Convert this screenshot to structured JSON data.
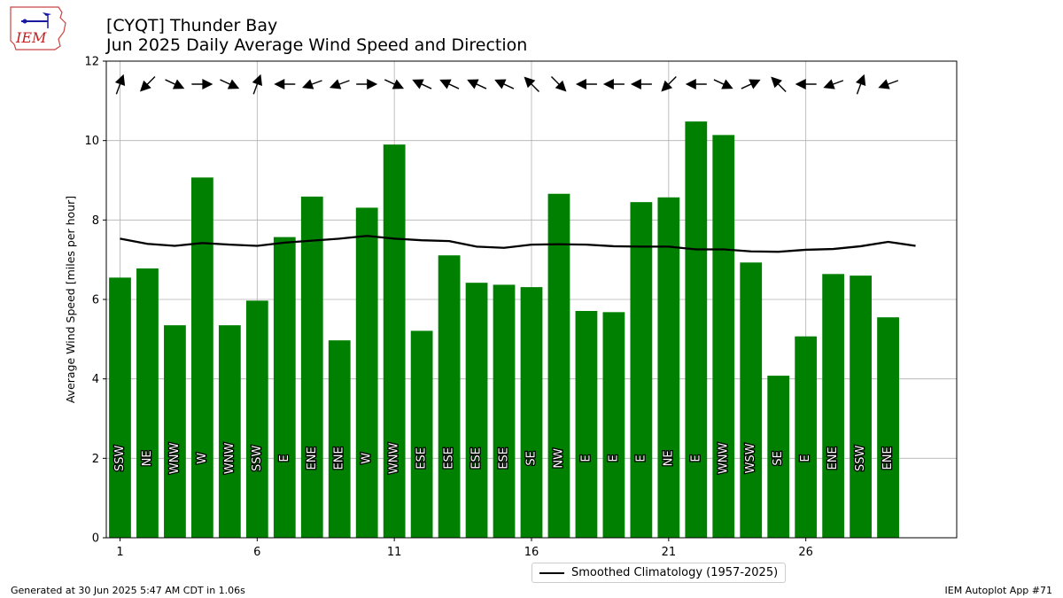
{
  "logo": {
    "text": "IEM"
  },
  "header": {
    "title_line1": "[CYQT] Thunder Bay",
    "title_line2": "Jun 2025 Daily Average Wind Speed and Direction"
  },
  "footer": {
    "left": "Generated at 30 Jun 2025 5:47 AM CDT in 1.06s",
    "right": "IEM Autoplot App #71"
  },
  "colors": {
    "bar": "#008000",
    "climatology": "#000000",
    "grid": "#b0b0b0"
  },
  "chart_data": {
    "type": "bar",
    "ylabel": "Average Wind Speed [miles per hour]",
    "ylim": [
      0,
      12
    ],
    "yticks": [
      0,
      2,
      4,
      6,
      8,
      10,
      12
    ],
    "xticks": [
      1,
      6,
      11,
      16,
      21,
      26
    ],
    "xlim": [
      0.5,
      31.5
    ],
    "grid": true,
    "legend": "lower center, below axes",
    "days": [
      1,
      2,
      3,
      4,
      5,
      6,
      7,
      8,
      9,
      10,
      11,
      12,
      13,
      14,
      15,
      16,
      17,
      18,
      19,
      20,
      21,
      22,
      23,
      24,
      25,
      26,
      27,
      28,
      29
    ],
    "speed": [
      6.55,
      6.78,
      5.35,
      9.07,
      5.35,
      5.97,
      7.57,
      8.59,
      4.97,
      8.31,
      9.9,
      5.21,
      7.11,
      6.42,
      6.37,
      6.31,
      8.66,
      5.71,
      5.68,
      8.45,
      8.57,
      10.48,
      10.14,
      6.93,
      4.08,
      5.07,
      6.64,
      6.6,
      5.55
    ],
    "direction_labels": [
      "SSW",
      "NE",
      "WNW",
      "W",
      "WNW",
      "SSW",
      "E",
      "ENE",
      "ENE",
      "W",
      "WNW",
      "ESE",
      "ESE",
      "ESE",
      "ESE",
      "SE",
      "NW",
      "E",
      "E",
      "E",
      "NE",
      "E",
      "WNW",
      "WSW",
      "SE",
      "E",
      "ENE",
      "SSW",
      "ENE"
    ],
    "direction_deg": [
      200,
      45,
      295,
      270,
      295,
      200,
      90,
      70,
      70,
      270,
      295,
      115,
      115,
      115,
      115,
      135,
      315,
      90,
      90,
      90,
      45,
      90,
      295,
      245,
      135,
      90,
      70,
      200,
      70
    ],
    "series": [
      {
        "name": "Smoothed Climatology (1957-2025)",
        "x": [
          1,
          2,
          3,
          4,
          5,
          6,
          7,
          8,
          9,
          10,
          11,
          12,
          13,
          14,
          15,
          16,
          17,
          18,
          19,
          20,
          21,
          22,
          23,
          24,
          25,
          26,
          27,
          28,
          29,
          30
        ],
        "values": [
          7.53,
          7.4,
          7.35,
          7.42,
          7.38,
          7.35,
          7.43,
          7.48,
          7.53,
          7.6,
          7.53,
          7.49,
          7.47,
          7.33,
          7.3,
          7.38,
          7.39,
          7.38,
          7.34,
          7.33,
          7.33,
          7.26,
          7.26,
          7.21,
          7.2,
          7.25,
          7.27,
          7.34,
          7.45,
          7.35
        ]
      }
    ]
  }
}
